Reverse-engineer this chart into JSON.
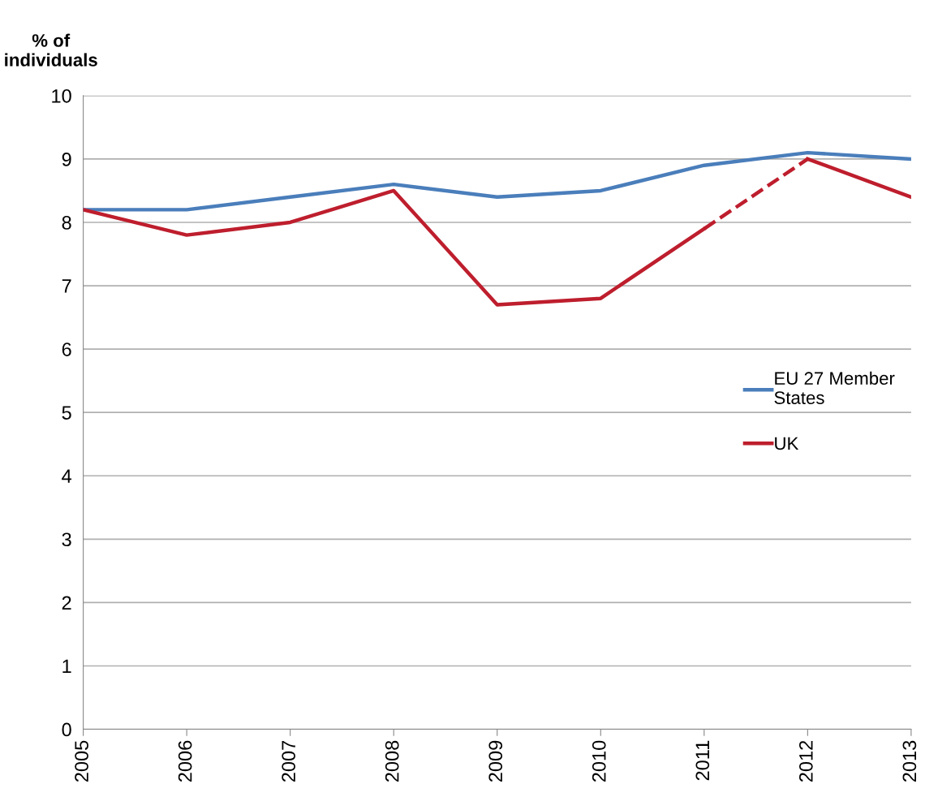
{
  "chart_data": {
    "type": "line",
    "ylabel": "% of\nindividuals",
    "x": [
      2005,
      2006,
      2007,
      2008,
      2009,
      2010,
      2011,
      2012,
      2013
    ],
    "series": [
      {
        "name": "EU 27 Member\nStates",
        "color": "#4a7ebb",
        "values": [
          8.2,
          8.2,
          8.4,
          8.6,
          8.4,
          8.5,
          8.9,
          9.1,
          9.0
        ]
      },
      {
        "name": "UK",
        "color": "#be1e2d",
        "values": [
          8.2,
          7.8,
          8.0,
          8.5,
          6.7,
          6.8,
          7.9,
          null,
          null
        ]
      },
      {
        "color": "#be1e2d",
        "line_style": "dashed",
        "values": [
          null,
          null,
          null,
          null,
          null,
          null,
          7.9,
          9.0,
          null
        ]
      },
      {
        "color": "#be1e2d",
        "values": [
          null,
          null,
          null,
          null,
          null,
          null,
          null,
          9.0,
          8.4
        ]
      }
    ],
    "xlim": [
      2005,
      2013
    ],
    "xticks": [
      2005,
      2006,
      2007,
      2008,
      2009,
      2010,
      2011,
      2012,
      2013
    ],
    "ylim": [
      0,
      10
    ],
    "yticks": [
      0,
      1,
      2,
      3,
      4,
      5,
      6,
      7,
      8,
      9,
      10
    ],
    "grid": "y",
    "legend": "right",
    "line_style": "solid",
    "marker": "none"
  }
}
